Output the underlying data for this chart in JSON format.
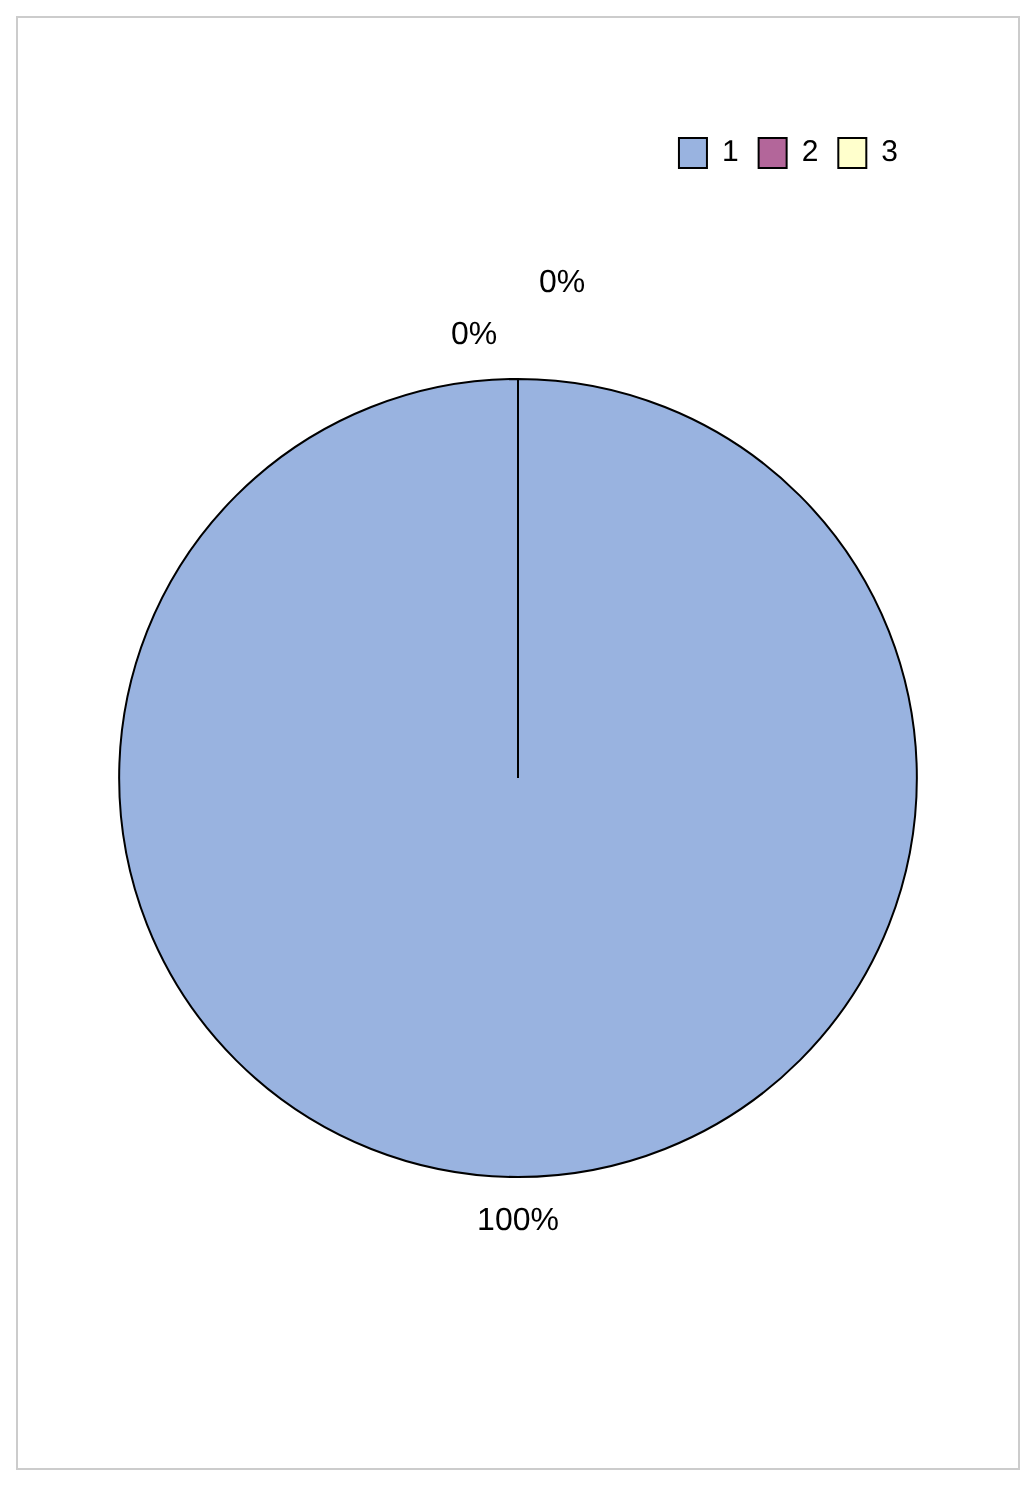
{
  "chart_data": {
    "type": "pie",
    "categories": [
      "1",
      "2",
      "3"
    ],
    "values": [
      100,
      0,
      0
    ],
    "value_labels": [
      "100%",
      "0%",
      "0%"
    ],
    "colors": [
      "#99b3e0",
      "#b3669a",
      "#ffffcc"
    ],
    "legend": "top right"
  }
}
